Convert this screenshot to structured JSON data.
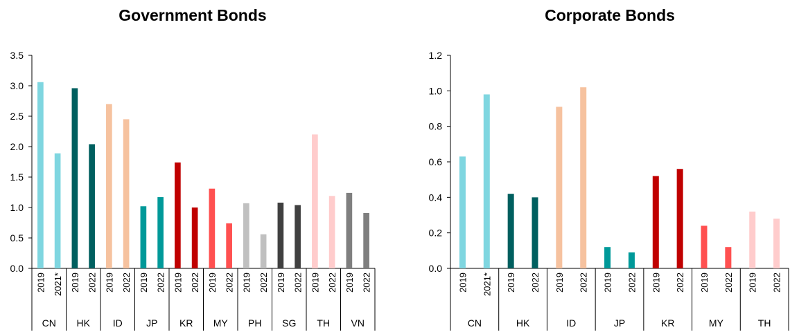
{
  "charts": [
    {
      "title": "Government Bonds",
      "type": "bar",
      "ylim": [
        0,
        3.5
      ],
      "yticks": [
        "0.0",
        "0.5",
        "1.0",
        "1.5",
        "2.0",
        "2.5",
        "3.0",
        "3.5"
      ],
      "groups": [
        {
          "label": "CN",
          "color": "#7fd6e0",
          "bars": [
            {
              "x": "2019",
              "value": 3.06
            },
            {
              "x": "2021*",
              "value": 1.89
            }
          ]
        },
        {
          "label": "HK",
          "color": "#005f5f",
          "bars": [
            {
              "x": "2019",
              "value": 2.96
            },
            {
              "x": "2022",
              "value": 2.04
            }
          ]
        },
        {
          "label": "ID",
          "color": "#f6c29f",
          "bars": [
            {
              "x": "2019",
              "value": 2.7
            },
            {
              "x": "2022",
              "value": 2.45
            }
          ]
        },
        {
          "label": "JP",
          "color": "#009999",
          "bars": [
            {
              "x": "2019",
              "value": 1.02
            },
            {
              "x": "2022",
              "value": 1.17
            }
          ]
        },
        {
          "label": "KR",
          "color": "#c00000",
          "bars": [
            {
              "x": "2019",
              "value": 1.74
            },
            {
              "x": "2022",
              "value": 1.0
            }
          ]
        },
        {
          "label": "MY",
          "color": "#ff5050",
          "bars": [
            {
              "x": "2019",
              "value": 1.31
            },
            {
              "x": "2022",
              "value": 0.74
            }
          ]
        },
        {
          "label": "PH",
          "color": "#c0c0c0",
          "bars": [
            {
              "x": "2019",
              "value": 1.07
            },
            {
              "x": "2022",
              "value": 0.56
            }
          ]
        },
        {
          "label": "SG",
          "color": "#404040",
          "bars": [
            {
              "x": "2019",
              "value": 1.08
            },
            {
              "x": "2022",
              "value": 1.04
            }
          ]
        },
        {
          "label": "TH",
          "color": "#ffcccc",
          "bars": [
            {
              "x": "2019",
              "value": 2.2
            },
            {
              "x": "2022",
              "value": 1.19
            }
          ]
        },
        {
          "label": "VN",
          "color": "#7f7f7f",
          "bars": [
            {
              "x": "2019",
              "value": 1.24
            },
            {
              "x": "2022",
              "value": 0.91
            }
          ]
        }
      ]
    },
    {
      "title": "Corporate Bonds",
      "type": "bar",
      "ylim": [
        0,
        1.2
      ],
      "yticks": [
        "0.0",
        "0.2",
        "0.4",
        "0.6",
        "0.8",
        "1.0",
        "1.2"
      ],
      "groups": [
        {
          "label": "CN",
          "color": "#7fd6e0",
          "bars": [
            {
              "x": "2019",
              "value": 0.63
            },
            {
              "x": "2021*",
              "value": 0.98
            }
          ]
        },
        {
          "label": "HK",
          "color": "#005f5f",
          "bars": [
            {
              "x": "2019",
              "value": 0.42
            },
            {
              "x": "2022",
              "value": 0.4
            }
          ]
        },
        {
          "label": "ID",
          "color": "#f6c29f",
          "bars": [
            {
              "x": "2019",
              "value": 0.91
            },
            {
              "x": "2022",
              "value": 1.02
            }
          ]
        },
        {
          "label": "JP",
          "color": "#009999",
          "bars": [
            {
              "x": "2019",
              "value": 0.12
            },
            {
              "x": "2022",
              "value": 0.09
            }
          ]
        },
        {
          "label": "KR",
          "color": "#c00000",
          "bars": [
            {
              "x": "2019",
              "value": 0.52
            },
            {
              "x": "2022",
              "value": 0.56
            }
          ]
        },
        {
          "label": "MY",
          "color": "#ff5050",
          "bars": [
            {
              "x": "2019",
              "value": 0.24
            },
            {
              "x": "2022",
              "value": 0.12
            }
          ]
        },
        {
          "label": "TH",
          "color": "#ffcccc",
          "bars": [
            {
              "x": "2019",
              "value": 0.32
            },
            {
              "x": "2022",
              "value": 0.28
            }
          ]
        }
      ]
    }
  ],
  "chart_data": [
    {
      "type": "bar",
      "title": "Government Bonds",
      "ylim": [
        0,
        3.5
      ],
      "categories": [
        "CN 2019",
        "CN 2021*",
        "HK 2019",
        "HK 2022",
        "ID 2019",
        "ID 2022",
        "JP 2019",
        "JP 2022",
        "KR 2019",
        "KR 2022",
        "MY 2019",
        "MY 2022",
        "PH 2019",
        "PH 2022",
        "SG 2019",
        "SG 2022",
        "TH 2019",
        "TH 2022",
        "VN 2019",
        "VN 2022"
      ],
      "values": [
        3.06,
        1.89,
        2.96,
        2.04,
        2.7,
        2.45,
        1.02,
        1.17,
        1.74,
        1.0,
        1.31,
        0.74,
        1.07,
        0.56,
        1.08,
        1.04,
        2.2,
        1.19,
        1.24,
        0.91
      ]
    },
    {
      "type": "bar",
      "title": "Corporate Bonds",
      "ylim": [
        0,
        1.2
      ],
      "categories": [
        "CN 2019",
        "CN 2021*",
        "HK 2019",
        "HK 2022",
        "ID 2019",
        "ID 2022",
        "JP 2019",
        "JP 2022",
        "KR 2019",
        "KR 2022",
        "MY 2019",
        "MY 2022",
        "TH 2019",
        "TH 2022"
      ],
      "values": [
        0.63,
        0.98,
        0.42,
        0.4,
        0.91,
        1.02,
        0.12,
        0.09,
        0.52,
        0.56,
        0.24,
        0.12,
        0.32,
        0.28
      ]
    }
  ]
}
